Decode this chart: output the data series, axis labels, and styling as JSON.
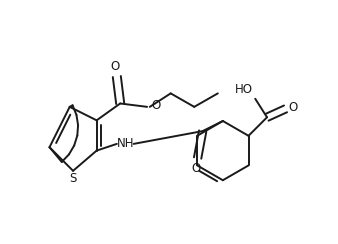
{
  "background_color": "#ffffff",
  "line_color": "#1a1a1a",
  "line_width": 1.4,
  "font_size": 8.5,
  "figsize": [
    3.38,
    2.44
  ],
  "dpi": 100,
  "xlim": [
    0,
    10
  ],
  "ylim": [
    0,
    7.2
  ]
}
